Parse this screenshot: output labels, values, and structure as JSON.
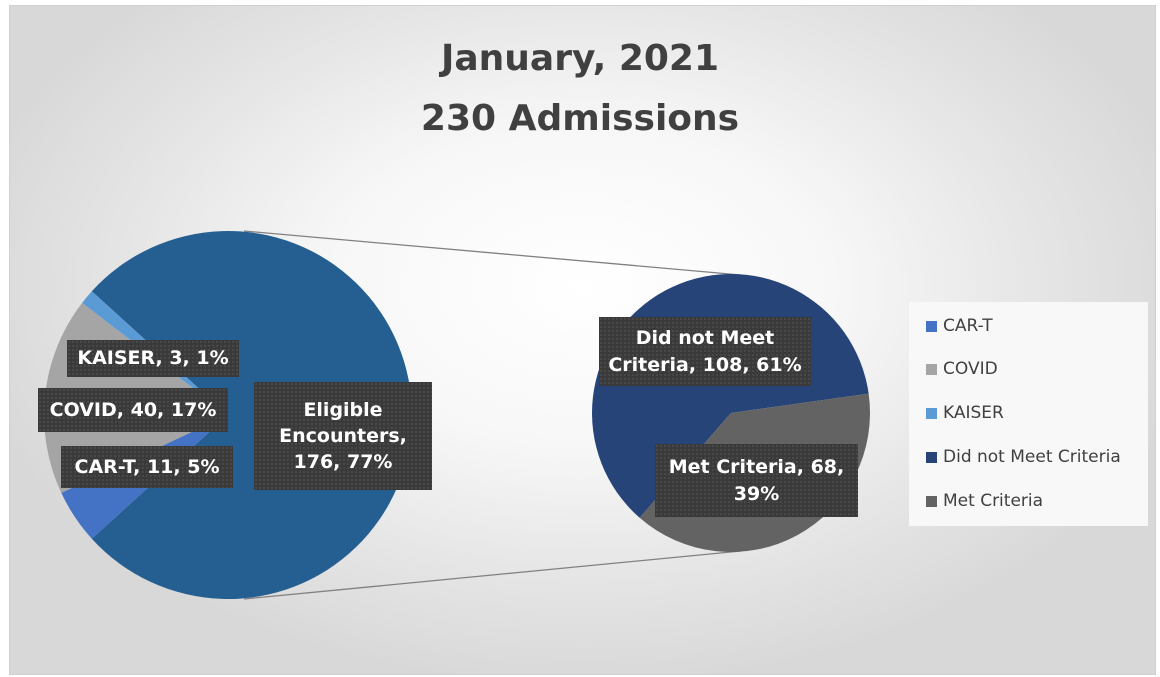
{
  "chart_data": {
    "type": "pie",
    "subtype": "pie-of-pie",
    "title": [
      "January, 2021",
      "230 Admissions"
    ],
    "main_pie": {
      "slices": [
        {
          "name": "Eligible Encounters",
          "value": 176,
          "percent": "77%",
          "label": "Eligible Encounters, 176, 77%",
          "color": "#255e91"
        },
        {
          "name": "CAR-T",
          "value": 11,
          "percent": "5%",
          "label": "CAR-T, 11, 5%",
          "color": "#4472c4"
        },
        {
          "name": "COVID",
          "value": 40,
          "percent": "17%",
          "label": "COVID, 40, 17%",
          "color": "#a5a5a5"
        },
        {
          "name": "KAISER",
          "value": 3,
          "percent": "1%",
          "label": "KAISER, 3, 1%",
          "color": "#5b9bd5"
        }
      ]
    },
    "secondary_pie": {
      "breakdown_of": "Eligible Encounters",
      "slices": [
        {
          "name": "Did not Meet Criteria",
          "value": 108,
          "percent": "61%",
          "label": "Did not Meet Criteria, 108, 61%",
          "color": "#264478"
        },
        {
          "name": "Met Criteria",
          "value": 68,
          "percent": "39%",
          "label": "Met Criteria, 68, 39%",
          "color": "#636363"
        }
      ]
    },
    "legend": {
      "position": "right",
      "items": [
        {
          "name": "CAR-T",
          "color": "#4472c4"
        },
        {
          "name": "COVID",
          "color": "#a5a5a5"
        },
        {
          "name": "KAISER",
          "color": "#5b9bd5"
        },
        {
          "name": "Did not Meet Criteria",
          "color": "#264478"
        },
        {
          "name": "Met Criteria",
          "color": "#636363"
        }
      ]
    },
    "data_labels": {
      "eligible": "Eligible\nEncounters,\n176, 77%",
      "kaiser": "KAISER, 3, 1%",
      "covid": "COVID, 40, 17%",
      "cart": "CAR-T, 11, 5%",
      "did_not_meet": "Did not Meet\nCriteria, 108, 61%",
      "met": "Met Criteria, 68,\n39%"
    },
    "connector_color": "#808080"
  }
}
